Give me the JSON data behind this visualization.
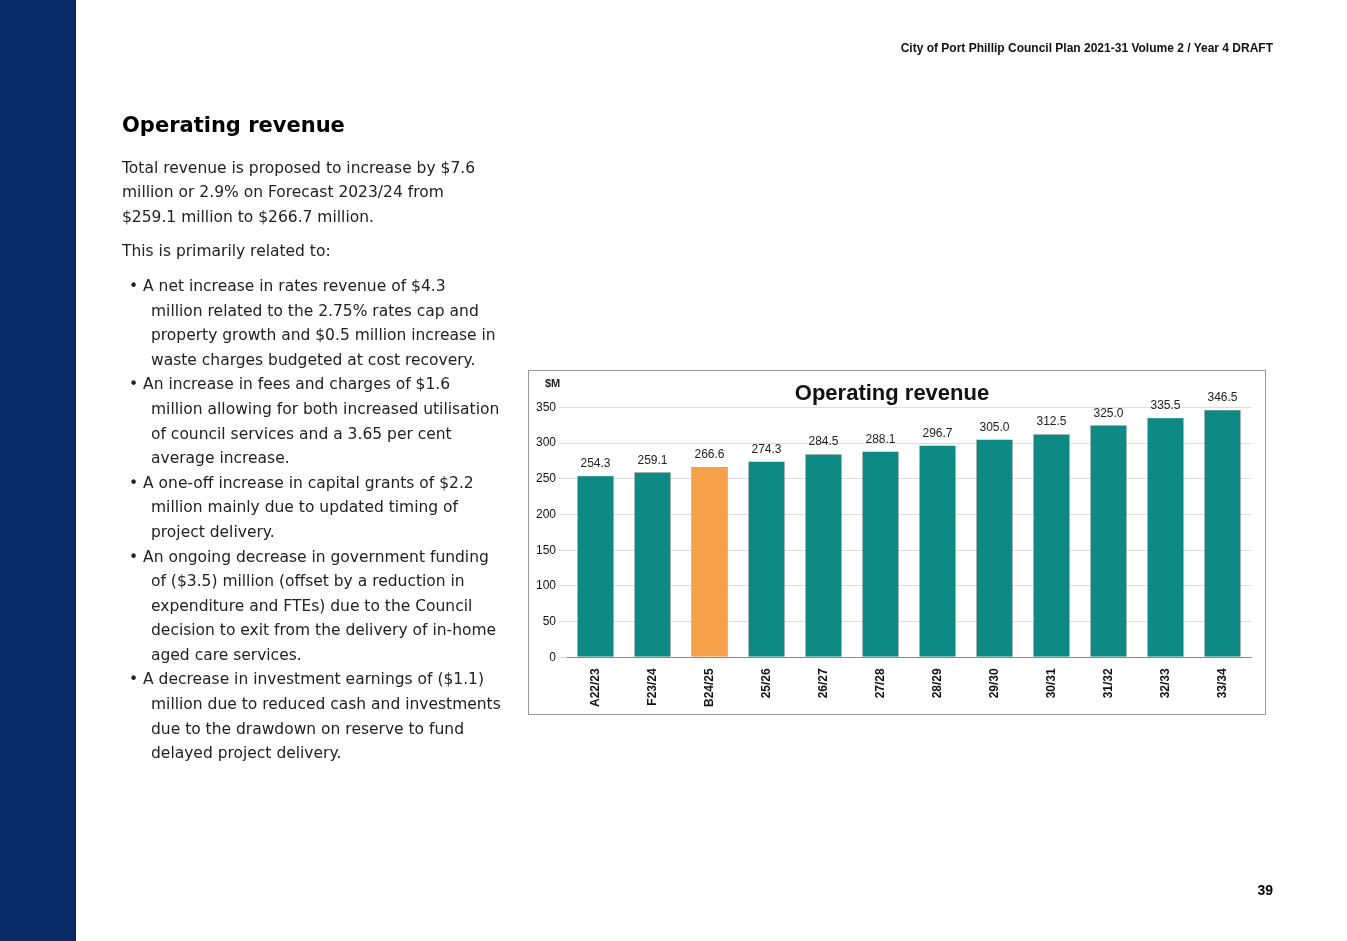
{
  "chart_data": {
    "type": "bar",
    "title": "Operating revenue",
    "ylabel": "$M",
    "categories": [
      "A22/23",
      "F23/24",
      "B24/25",
      "25/26",
      "26/27",
      "27/28",
      "28/29",
      "29/30",
      "30/31",
      "31/32",
      "32/33",
      "33/34"
    ],
    "values": [
      254.3,
      259.1,
      266.6,
      274.3,
      284.5,
      288.1,
      296.7,
      305.0,
      312.5,
      325.0,
      335.5,
      346.5
    ],
    "colors": [
      "#0e8a85",
      "#0e8a85",
      "#f5a04a",
      "#0e8a85",
      "#0e8a85",
      "#0e8a85",
      "#0e8a85",
      "#0e8a85",
      "#0e8a85",
      "#0e8a85",
      "#0e8a85",
      "#0e8a85"
    ],
    "value_labels": [
      "254.3",
      "259.1",
      "266.6",
      "274.3",
      "284.5",
      "288.1",
      "296.7",
      "305.0",
      "312.5",
      "325.0",
      "335.5",
      "346.5"
    ],
    "ylim": [
      0,
      350
    ],
    "yticks": [
      0,
      50,
      100,
      150,
      200,
      250,
      300,
      350
    ],
    "grid": "y",
    "legend": false,
    "annotations": [
      "City of Port Phillip Council Plan 2021-31 Volume 2 / Year 4 DRAFT",
      "39",
      "Operating revenue",
      "Total revenue is proposed to increase by $7.6 million or 2.9% on Forecast 2023/24 from $259.1 million to $266.7 million.",
      "This is primarily related to:",
      "• A net increase in rates revenue of $4.3 million related to the 2.75% rates cap and property growth and $0.5 million increase in waste charges budgeted at cost recovery.",
      "• An increase in fees and charges of $1.6 million allowing for both increased utilisation of council services and a 3.65 per cent average increase.",
      "• A one-off increase in capital grants of $2.2 million mainly due to updated timing of project delivery.",
      "• An ongoing decrease in government funding of ($3.5) million (offset by a reduction in expenditure and FTEs) due to the Council decision to exit from the delivery of in-home aged care services.",
      "• A decrease in investment earnings of ($1.1) million due to reduced cash and investments due to the drawdown on reserve to fund delayed project delivery."
    ]
  }
}
